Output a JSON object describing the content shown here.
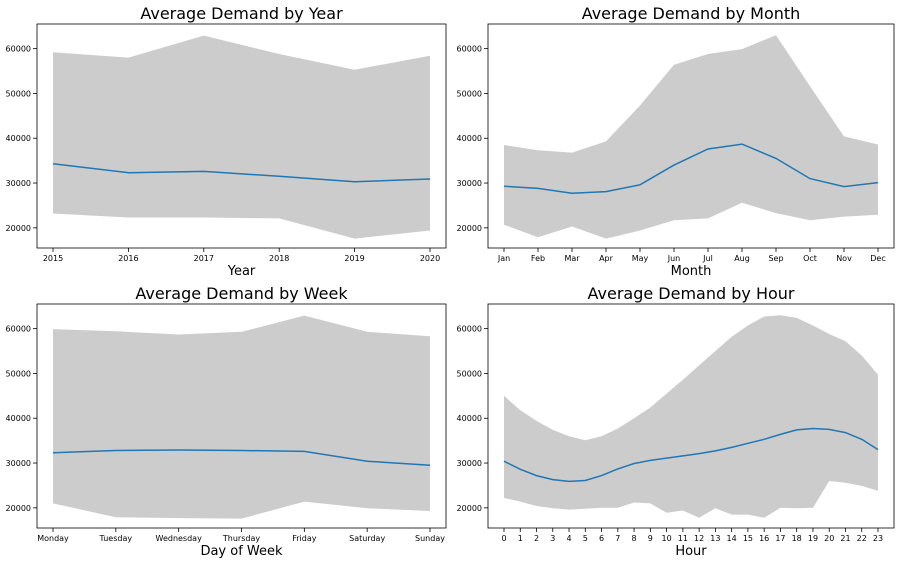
{
  "chart_data": [
    {
      "type": "line",
      "title": "Average Demand by Year",
      "xlabel": "Year",
      "ylabel": "",
      "categories": [
        "2015",
        "2016",
        "2017",
        "2018",
        "2019",
        "2020"
      ],
      "series": [
        {
          "values": [
            34300,
            32300,
            32600,
            31500,
            30300,
            30900
          ]
        }
      ],
      "band_upper": [
        59200,
        58000,
        62900,
        58800,
        55300,
        58400
      ],
      "band_lower": [
        23200,
        22300,
        22300,
        22100,
        17600,
        19400
      ],
      "yticks": [
        20000,
        30000,
        40000,
        50000,
        60000
      ],
      "ylim": [
        15500,
        65500
      ],
      "colors": {
        "line": "#1f77b4",
        "band": "#cccccc"
      }
    },
    {
      "type": "line",
      "title": "Average Demand by Month",
      "xlabel": "Month",
      "ylabel": "",
      "categories": [
        "Jan",
        "Feb",
        "Mar",
        "Apr",
        "May",
        "Jun",
        "Jul",
        "Aug",
        "Sep",
        "Oct",
        "Nov",
        "Dec"
      ],
      "series": [
        {
          "values": [
            29300,
            28800,
            27700,
            28100,
            29600,
            34000,
            37600,
            38700,
            35500,
            31000,
            29200,
            30100
          ]
        }
      ],
      "band_upper": [
        38500,
        37300,
        36800,
        39300,
        47300,
        56400,
        58800,
        59900,
        63000,
        51600,
        40400,
        38600
      ],
      "band_lower": [
        20700,
        17900,
        20300,
        17600,
        19400,
        21700,
        22100,
        25600,
        23300,
        21700,
        22500,
        22900
      ],
      "yticks": [
        20000,
        30000,
        40000,
        50000,
        60000
      ],
      "ylim": [
        15500,
        65500
      ],
      "colors": {
        "line": "#1f77b4",
        "band": "#cccccc"
      }
    },
    {
      "type": "line",
      "title": "Average Demand by Week",
      "xlabel": "Day of Week",
      "ylabel": "",
      "categories": [
        "Monday",
        "Tuesday",
        "Wednesday",
        "Thursday",
        "Friday",
        "Saturday",
        "Sunday"
      ],
      "series": [
        {
          "values": [
            32300,
            32800,
            32900,
            32800,
            32600,
            30400,
            29500
          ]
        }
      ],
      "band_upper": [
        59900,
        59400,
        58700,
        59300,
        62900,
        59300,
        58300
      ],
      "band_lower": [
        21000,
        17900,
        17700,
        17600,
        21400,
        19900,
        19300
      ],
      "yticks": [
        20000,
        30000,
        40000,
        50000,
        60000
      ],
      "ylim": [
        15500,
        65500
      ],
      "colors": {
        "line": "#1f77b4",
        "band": "#cccccc"
      }
    },
    {
      "type": "line",
      "title": "Average Demand by Hour",
      "xlabel": "Hour",
      "ylabel": "",
      "categories": [
        "0",
        "1",
        "2",
        "3",
        "4",
        "5",
        "6",
        "7",
        "8",
        "9",
        "10",
        "11",
        "12",
        "13",
        "14",
        "15",
        "16",
        "17",
        "18",
        "19",
        "20",
        "21",
        "22",
        "23"
      ],
      "series": [
        {
          "values": [
            30400,
            28600,
            27200,
            26300,
            25900,
            26100,
            27200,
            28700,
            29900,
            30600,
            31100,
            31600,
            32100,
            32700,
            33500,
            34400,
            35300,
            36400,
            37400,
            37700,
            37500,
            36800,
            35300,
            33000
          ]
        }
      ],
      "band_upper": [
        45000,
        41800,
        39400,
        37400,
        36000,
        35100,
        36000,
        37700,
        40000,
        42400,
        45500,
        48600,
        51800,
        55000,
        58200,
        60700,
        62700,
        63000,
        62400,
        60700,
        58800,
        57200,
        54000,
        49700
      ],
      "band_lower": [
        22200,
        21400,
        20400,
        19900,
        19600,
        19800,
        20000,
        20000,
        21200,
        21000,
        18900,
        19400,
        17800,
        19900,
        18500,
        18500,
        17800,
        20000,
        19900,
        20000,
        26000,
        25600,
        24900,
        23800
      ],
      "yticks": [
        20000,
        30000,
        40000,
        50000,
        60000
      ],
      "ylim": [
        15500,
        65500
      ],
      "colors": {
        "line": "#1f77b4",
        "band": "#cccccc"
      }
    }
  ]
}
